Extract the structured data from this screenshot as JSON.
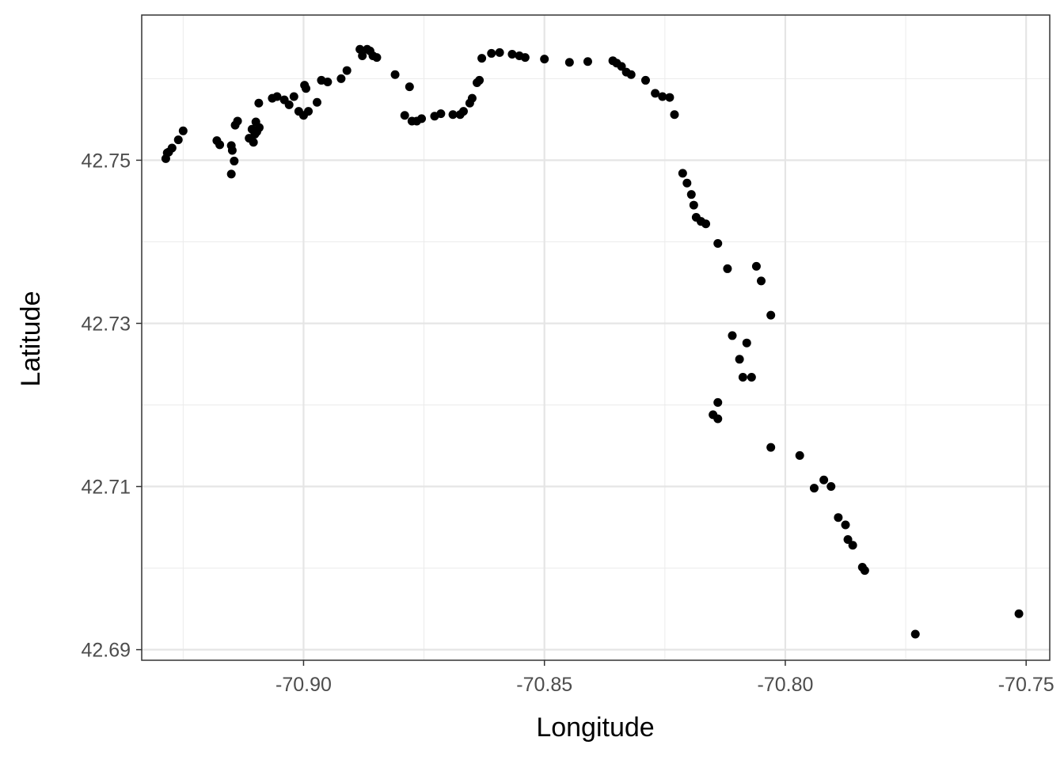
{
  "chart_data": {
    "type": "scatter",
    "xlabel": "Longitude",
    "ylabel": "Latitude",
    "xlim": [
      -70.9336,
      -70.7451
    ],
    "ylim": [
      42.6887,
      42.7678
    ],
    "x_ticks": [
      -70.9,
      -70.85,
      -70.8,
      -70.75
    ],
    "x_tick_labels": [
      "-70.90",
      "-70.85",
      "-70.80",
      "-70.75"
    ],
    "y_ticks": [
      42.69,
      42.71,
      42.73,
      42.75
    ],
    "y_tick_labels": [
      "42.69",
      "42.71",
      "42.73",
      "42.75"
    ],
    "grid": true,
    "point_color": "#000000",
    "points": [
      [
        -70.9286,
        42.7502
      ],
      [
        -70.9283,
        42.7509
      ],
      [
        -70.928,
        42.751
      ],
      [
        -70.9273,
        42.7515
      ],
      [
        -70.926,
        42.7525
      ],
      [
        -70.925,
        42.7536
      ],
      [
        -70.918,
        42.7524
      ],
      [
        -70.9174,
        42.7519
      ],
      [
        -70.915,
        42.7518
      ],
      [
        -70.9148,
        42.7512
      ],
      [
        -70.915,
        42.7483
      ],
      [
        -70.9144,
        42.7499
      ],
      [
        -70.9142,
        42.7543
      ],
      [
        -70.9137,
        42.7548
      ],
      [
        -70.9113,
        42.7527
      ],
      [
        -70.9107,
        42.7538
      ],
      [
        -70.9104,
        42.7522
      ],
      [
        -70.9101,
        42.7532
      ],
      [
        -70.9099,
        42.7547
      ],
      [
        -70.9097,
        42.7535
      ],
      [
        -70.9092,
        42.754
      ],
      [
        -70.9093,
        42.757
      ],
      [
        -70.9065,
        42.7576
      ],
      [
        -70.9055,
        42.7578
      ],
      [
        -70.904,
        42.7574
      ],
      [
        -70.903,
        42.7568
      ],
      [
        -70.902,
        42.7578
      ],
      [
        -70.901,
        42.756
      ],
      [
        -70.9,
        42.7555
      ],
      [
        -70.8998,
        42.7592
      ],
      [
        -70.8995,
        42.7588
      ],
      [
        -70.899,
        42.756
      ],
      [
        -70.8972,
        42.7571
      ],
      [
        -70.8963,
        42.7598
      ],
      [
        -70.895,
        42.7596
      ],
      [
        -70.8922,
        42.76
      ],
      [
        -70.891,
        42.761
      ],
      [
        -70.8883,
        42.7636
      ],
      [
        -70.8878,
        42.7628
      ],
      [
        -70.8868,
        42.7636
      ],
      [
        -70.8862,
        42.7634
      ],
      [
        -70.8856,
        42.7628
      ],
      [
        -70.8848,
        42.7626
      ],
      [
        -70.881,
        42.7605
      ],
      [
        -70.879,
        42.7555
      ],
      [
        -70.878,
        42.759
      ],
      [
        -70.8775,
        42.7548
      ],
      [
        -70.8765,
        42.7548
      ],
      [
        -70.8755,
        42.7551
      ],
      [
        -70.8728,
        42.7554
      ],
      [
        -70.8715,
        42.7557
      ],
      [
        -70.869,
        42.7556
      ],
      [
        -70.8675,
        42.7556
      ],
      [
        -70.8668,
        42.756
      ],
      [
        -70.8655,
        42.757
      ],
      [
        -70.865,
        42.7576
      ],
      [
        -70.864,
        42.7595
      ],
      [
        -70.8635,
        42.7598
      ],
      [
        -70.863,
        42.7625
      ],
      [
        -70.861,
        42.7631
      ],
      [
        -70.8593,
        42.7632
      ],
      [
        -70.8567,
        42.763
      ],
      [
        -70.8552,
        42.7628
      ],
      [
        -70.854,
        42.7626
      ],
      [
        -70.85,
        42.7624
      ],
      [
        -70.8448,
        42.762
      ],
      [
        -70.841,
        42.7621
      ],
      [
        -70.8358,
        42.7622
      ],
      [
        -70.835,
        42.7619
      ],
      [
        -70.834,
        42.7615
      ],
      [
        -70.833,
        42.7608
      ],
      [
        -70.832,
        42.7605
      ],
      [
        -70.829,
        42.7598
      ],
      [
        -70.827,
        42.7582
      ],
      [
        -70.8255,
        42.7578
      ],
      [
        -70.824,
        42.7577
      ],
      [
        -70.823,
        42.7556
      ],
      [
        -70.8213,
        42.7484
      ],
      [
        -70.8204,
        42.7472
      ],
      [
        -70.8195,
        42.7458
      ],
      [
        -70.819,
        42.7445
      ],
      [
        -70.8185,
        42.743
      ],
      [
        -70.8175,
        42.7425
      ],
      [
        -70.8165,
        42.7422
      ],
      [
        -70.814,
        42.7398
      ],
      [
        -70.812,
        42.7367
      ],
      [
        -70.806,
        42.737
      ],
      [
        -70.805,
        42.7352
      ],
      [
        -70.803,
        42.731
      ],
      [
        -70.811,
        42.7285
      ],
      [
        -70.808,
        42.7276
      ],
      [
        -70.8095,
        42.7256
      ],
      [
        -70.8088,
        42.7234
      ],
      [
        -70.807,
        42.7234
      ],
      [
        -70.814,
        42.7203
      ],
      [
        -70.815,
        42.7188
      ],
      [
        -70.814,
        42.7183
      ],
      [
        -70.803,
        42.7148
      ],
      [
        -70.797,
        42.7138
      ],
      [
        -70.794,
        42.7098
      ],
      [
        -70.792,
        42.7108
      ],
      [
        -70.7905,
        42.71
      ],
      [
        -70.789,
        42.7062
      ],
      [
        -70.7875,
        42.7053
      ],
      [
        -70.787,
        42.7035
      ],
      [
        -70.786,
        42.7028
      ],
      [
        -70.784,
        42.7001
      ],
      [
        -70.7835,
        42.6997
      ],
      [
        -70.773,
        42.6919
      ],
      [
        -70.7515,
        42.6944
      ]
    ]
  }
}
